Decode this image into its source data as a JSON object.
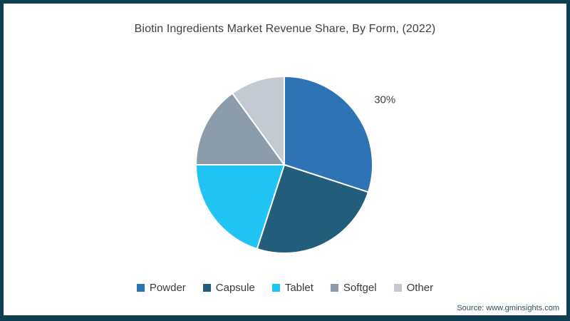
{
  "title": "Biotin Ingredients Market Revenue Share, By Form, (2022)",
  "source_note": "Source: www.gminsights.com",
  "frame_border_color": "#0d3f51",
  "chart_data": {
    "type": "pie",
    "title": "Biotin Ingredients Market Revenue Share, By Form, (2022)",
    "categories": [
      "Powder",
      "Capsule",
      "Tablet",
      "Softgel",
      "Other"
    ],
    "values": [
      30,
      25,
      20,
      15,
      10
    ],
    "unit": "%",
    "colors": [
      "#2e74b5",
      "#235d7c",
      "#1fc4f2",
      "#8c9cab",
      "#c3cad2"
    ],
    "data_labels": [
      {
        "category": "Powder",
        "text": "30%"
      }
    ],
    "start_angle_deg": 0,
    "direction": "clockwise",
    "legend_position": "bottom",
    "slice_border_color": "#ffffff"
  }
}
